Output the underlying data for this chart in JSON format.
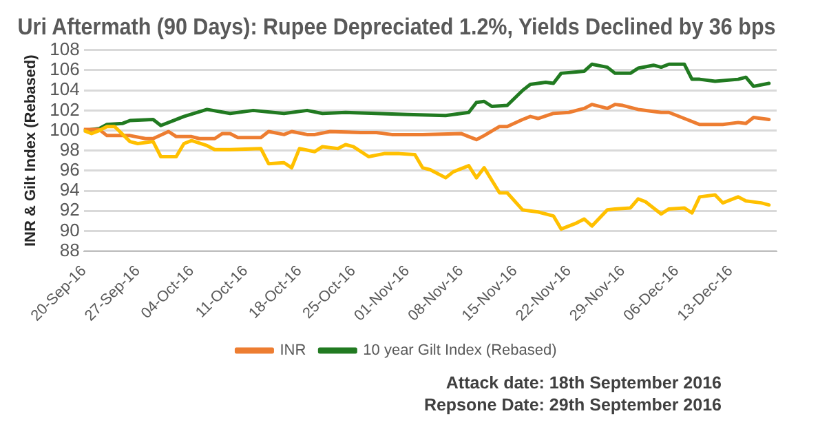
{
  "chart_data": {
    "type": "line",
    "title": "Uri Aftermath (90 Days): Rupee Depreciated 1.2%, Yields Declined by 36 bps",
    "ylabel": "INR & Gilt Index (Rebased)",
    "xlim": [
      "2016-09-20",
      "2016-12-19"
    ],
    "xticks": [
      {
        "value": "2016-09-20",
        "label": "20-Sep-16"
      },
      {
        "value": "2016-09-27",
        "label": "27-Sep-16"
      },
      {
        "value": "2016-10-04",
        "label": "04-Oct-16"
      },
      {
        "value": "2016-10-11",
        "label": "11-Oct-16"
      },
      {
        "value": "2016-10-18",
        "label": "18-Oct-16"
      },
      {
        "value": "2016-10-25",
        "label": "25-Oct-16"
      },
      {
        "value": "2016-11-01",
        "label": "01-Nov-16"
      },
      {
        "value": "2016-11-08",
        "label": "08-Nov-16"
      },
      {
        "value": "2016-11-15",
        "label": "15-Nov-16"
      },
      {
        "value": "2016-11-22",
        "label": "22-Nov-16"
      },
      {
        "value": "2016-11-29",
        "label": "29-Nov-16"
      },
      {
        "value": "2016-12-06",
        "label": "06-Dec-16"
      },
      {
        "value": "2016-12-13",
        "label": "13-Dec-16"
      }
    ],
    "ylim": [
      88,
      108
    ],
    "yticks": [
      88,
      90,
      92,
      94,
      96,
      98,
      100,
      102,
      104,
      106,
      108
    ],
    "grid": "y",
    "legend": "bottom",
    "marker": "none",
    "line_style": "solid",
    "series": [
      {
        "color": "#ffc000",
        "x": [
          "2016-09-20",
          "2016-09-21",
          "2016-09-22",
          "2016-09-23",
          "2016-09-24",
          "2016-09-26",
          "2016-09-27",
          "2016-09-29",
          "2016-09-30",
          "2016-10-02",
          "2016-10-03",
          "2016-10-04",
          "2016-10-06",
          "2016-10-07",
          "2016-10-09",
          "2016-10-13",
          "2016-10-14",
          "2016-10-16",
          "2016-10-17",
          "2016-10-18",
          "2016-10-20",
          "2016-10-21",
          "2016-10-23",
          "2016-10-24",
          "2016-10-25",
          "2016-10-27",
          "2016-10-29",
          "2016-10-31",
          "2016-11-02",
          "2016-11-03",
          "2016-11-04",
          "2016-11-06",
          "2016-11-07",
          "2016-11-09",
          "2016-11-10",
          "2016-11-11",
          "2016-11-13",
          "2016-11-14",
          "2016-11-16",
          "2016-11-18",
          "2016-11-20",
          "2016-11-21",
          "2016-11-23",
          "2016-11-24",
          "2016-11-25",
          "2016-11-27",
          "2016-11-28",
          "2016-11-30",
          "2016-12-01",
          "2016-12-02",
          "2016-12-04",
          "2016-12-05",
          "2016-12-07",
          "2016-12-08",
          "2016-12-09",
          "2016-12-11",
          "2016-12-12",
          "2016-12-14",
          "2016-12-15",
          "2016-12-17",
          "2016-12-18"
        ],
        "values": [
          100,
          99.7,
          100,
          100.4,
          100.4,
          98.9,
          98.7,
          98.9,
          97.4,
          97.4,
          98.7,
          99,
          98.5,
          98.1,
          98.1,
          98.2,
          96.7,
          96.8,
          96.3,
          98.2,
          97.9,
          98.4,
          98.2,
          98.6,
          98.4,
          97.4,
          97.7,
          97.7,
          97.6,
          96.3,
          96.1,
          95.3,
          95.9,
          96.5,
          95.3,
          96.3,
          93.8,
          93.8,
          92.1,
          91.9,
          91.5,
          90.2,
          90.8,
          91.2,
          90.5,
          92.1,
          92.2,
          92.3,
          93.2,
          92.9,
          91.7,
          92.2,
          92.3,
          91.8,
          93.4,
          93.6,
          92.8,
          93.4,
          93,
          92.8,
          92.6
        ]
      },
      {
        "name": "INR",
        "color": "#ed7d31",
        "x": [
          "2016-09-20",
          "2016-09-22",
          "2016-09-23",
          "2016-09-26",
          "2016-09-28",
          "2016-09-29",
          "2016-10-01",
          "2016-10-02",
          "2016-10-04",
          "2016-10-05",
          "2016-10-07",
          "2016-10-08",
          "2016-10-09",
          "2016-10-10",
          "2016-10-13",
          "2016-10-14",
          "2016-10-16",
          "2016-10-17",
          "2016-10-19",
          "2016-10-20",
          "2016-10-22",
          "2016-10-26",
          "2016-10-28",
          "2016-10-30",
          "2016-11-03",
          "2016-11-08",
          "2016-11-09",
          "2016-11-10",
          "2016-11-11",
          "2016-11-13",
          "2016-11-14",
          "2016-11-16",
          "2016-11-17",
          "2016-11-18",
          "2016-11-20",
          "2016-11-22",
          "2016-11-24",
          "2016-11-25",
          "2016-11-27",
          "2016-11-28",
          "2016-11-29",
          "2016-12-01",
          "2016-12-04",
          "2016-12-05",
          "2016-12-07",
          "2016-12-09",
          "2016-12-12",
          "2016-12-14",
          "2016-12-15",
          "2016-12-16",
          "2016-12-18"
        ],
        "values": [
          100.1,
          100.1,
          99.5,
          99.5,
          99.2,
          99.2,
          99.9,
          99.4,
          99.4,
          99.2,
          99.2,
          99.7,
          99.7,
          99.3,
          99.3,
          99.9,
          99.6,
          99.9,
          99.6,
          99.6,
          99.9,
          99.8,
          99.8,
          99.6,
          99.6,
          99.7,
          99.4,
          99.1,
          99.5,
          100.4,
          100.4,
          101.1,
          101.4,
          101.2,
          101.7,
          101.8,
          102.2,
          102.6,
          102.2,
          102.6,
          102.5,
          102.1,
          101.8,
          101.8,
          101.2,
          100.6,
          100.6,
          100.8,
          100.7,
          101.3,
          101.1
        ]
      },
      {
        "name": "10 year Gilt Index (Rebased)",
        "color": "#217a21",
        "x": [
          "2016-09-20",
          "2016-09-22",
          "2016-09-23",
          "2016-09-25",
          "2016-09-26",
          "2016-09-29",
          "2016-09-30",
          "2016-10-03",
          "2016-10-06",
          "2016-10-09",
          "2016-10-12",
          "2016-10-16",
          "2016-10-19",
          "2016-10-21",
          "2016-10-24",
          "2016-10-28",
          "2016-11-01",
          "2016-11-06",
          "2016-11-07",
          "2016-11-09",
          "2016-11-10",
          "2016-11-11",
          "2016-11-12",
          "2016-11-14",
          "2016-11-16",
          "2016-11-17",
          "2016-11-19",
          "2016-11-20",
          "2016-11-21",
          "2016-11-24",
          "2016-11-25",
          "2016-11-27",
          "2016-11-28",
          "2016-11-30",
          "2016-12-01",
          "2016-12-03",
          "2016-12-04",
          "2016-12-05",
          "2016-12-07",
          "2016-12-08",
          "2016-12-09",
          "2016-12-11",
          "2016-12-14",
          "2016-12-15",
          "2016-12-16",
          "2016-12-18"
        ],
        "values": [
          100,
          100.2,
          100.6,
          100.7,
          101,
          101.1,
          100.5,
          101.4,
          102.1,
          101.7,
          102,
          101.7,
          102,
          101.7,
          101.8,
          101.7,
          101.6,
          101.5,
          101.6,
          101.8,
          102.8,
          102.9,
          102.4,
          102.5,
          104,
          104.6,
          104.8,
          104.7,
          105.7,
          105.9,
          106.6,
          106.3,
          105.7,
          105.7,
          106.2,
          106.5,
          106.3,
          106.6,
          106.6,
          105.1,
          105.1,
          104.9,
          105.1,
          105.3,
          104.4,
          104.7
        ]
      }
    ],
    "annotations": [
      "Attack date: 18th September 2016",
      "Repsone Date: 29th September 2016"
    ]
  }
}
